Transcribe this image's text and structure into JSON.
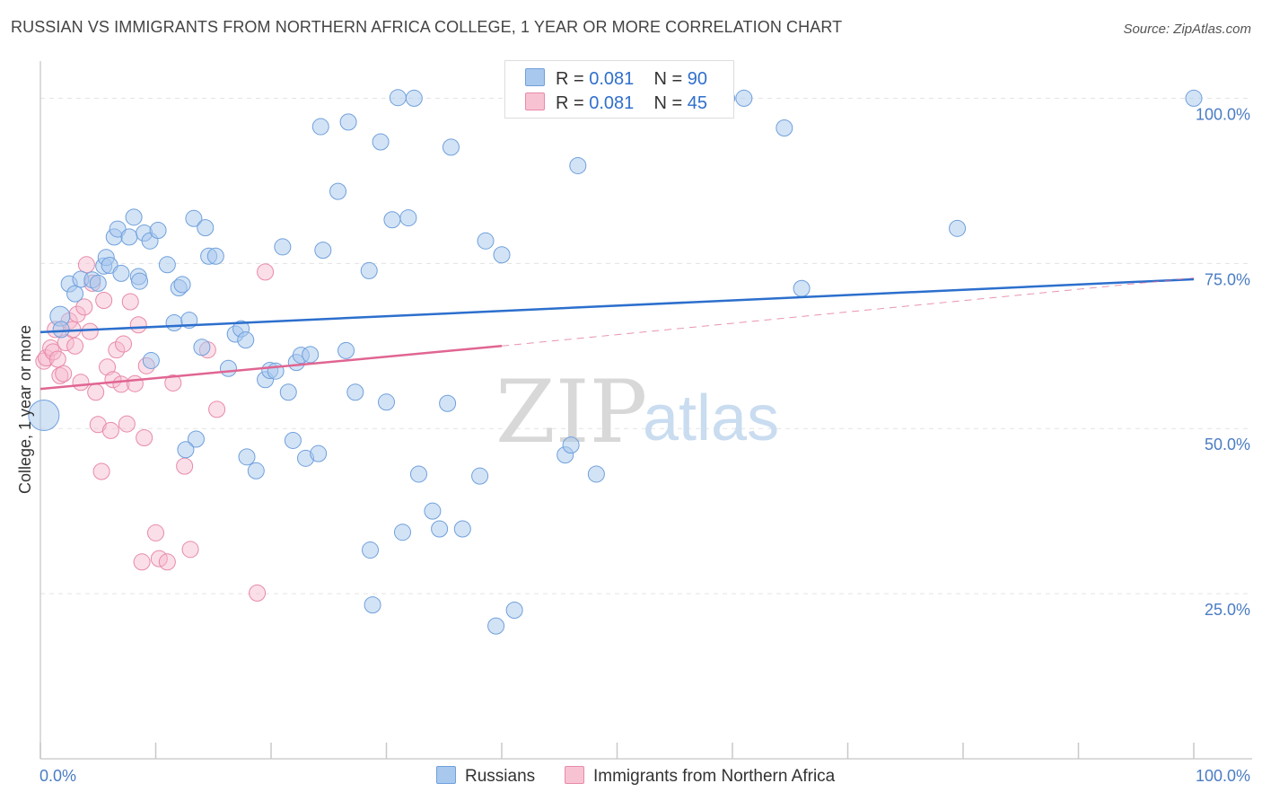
{
  "title": "RUSSIAN VS IMMIGRANTS FROM NORTHERN AFRICA COLLEGE, 1 YEAR OR MORE CORRELATION CHART",
  "source": "Source: ZipAtlas.com",
  "watermark": {
    "zip": "ZIP",
    "atlas": "atlas"
  },
  "legend": {
    "r_label": "R =",
    "n_label": "N =",
    "russians": {
      "r": "0.081",
      "n": "90"
    },
    "immigrants": {
      "r": "0.081",
      "n": "45"
    }
  },
  "bottom_legend": {
    "russians": "Russians",
    "immigrants": "Immigrants from Northern Africa"
  },
  "colors": {
    "russians_fill": "#a8c8ee",
    "russians_stroke": "#6fa0dc",
    "russians_line": "#2c6fcd",
    "immigrants_fill": "#f7b8cb",
    "immigrants_stroke": "#e88aa8",
    "immigrants_line": "#e06592",
    "tick_text": "#4a7cc4",
    "grid": "#e3e3e3"
  },
  "chart_data": {
    "type": "scatter",
    "title": "RUSSIAN VS IMMIGRANTS FROM NORTHERN AFRICA COLLEGE, 1 YEAR OR MORE CORRELATION CHART",
    "xlabel": "",
    "ylabel": "College, 1 year or more",
    "xlim": [
      0,
      100
    ],
    "ylim": [
      0,
      104
    ],
    "x_tick_labels": [
      "0.0%",
      "100.0%"
    ],
    "y_tick_labels": [
      "25.0%",
      "50.0%",
      "75.0%",
      "100.0%"
    ],
    "y_ticks": [
      25,
      50,
      75,
      100
    ],
    "grid": true,
    "series": [
      {
        "name": "Russians",
        "points": [
          [
            0.3,
            52.0
          ],
          [
            1.7,
            67.0
          ],
          [
            1.8,
            65.0
          ],
          [
            2.5,
            71.9
          ],
          [
            3.0,
            70.4
          ],
          [
            3.5,
            72.6
          ],
          [
            4.5,
            72.5
          ],
          [
            5.0,
            72.0
          ],
          [
            5.5,
            74.6
          ],
          [
            5.7,
            75.9
          ],
          [
            6.0,
            74.7
          ],
          [
            6.4,
            79.0
          ],
          [
            6.7,
            80.2
          ],
          [
            7.0,
            73.5
          ],
          [
            7.7,
            79.0
          ],
          [
            8.1,
            82.0
          ],
          [
            8.5,
            73.0
          ],
          [
            9.0,
            79.6
          ],
          [
            9.5,
            78.4
          ],
          [
            10.2,
            80.0
          ],
          [
            11.0,
            74.8
          ],
          [
            11.6,
            66.0
          ],
          [
            12.0,
            71.3
          ],
          [
            12.3,
            71.8
          ],
          [
            12.9,
            66.4
          ],
          [
            13.3,
            81.8
          ],
          [
            14.0,
            62.3
          ],
          [
            14.3,
            80.4
          ],
          [
            14.6,
            76.1
          ],
          [
            15.2,
            76.1
          ],
          [
            16.3,
            59.1
          ],
          [
            16.9,
            64.3
          ],
          [
            17.4,
            65.1
          ],
          [
            17.8,
            63.4
          ],
          [
            18.7,
            43.6
          ],
          [
            19.5,
            57.4
          ],
          [
            19.9,
            58.8
          ],
          [
            20.4,
            58.7
          ],
          [
            21.0,
            77.5
          ],
          [
            21.5,
            55.5
          ],
          [
            21.9,
            48.2
          ],
          [
            22.2,
            60.0
          ],
          [
            22.6,
            61.1
          ],
          [
            23.0,
            45.5
          ],
          [
            23.4,
            61.2
          ],
          [
            24.1,
            46.2
          ],
          [
            24.3,
            95.7
          ],
          [
            24.5,
            77.0
          ],
          [
            25.8,
            85.9
          ],
          [
            26.5,
            61.8
          ],
          [
            26.7,
            96.4
          ],
          [
            27.3,
            55.5
          ],
          [
            28.5,
            73.9
          ],
          [
            28.6,
            31.6
          ],
          [
            28.8,
            23.3
          ],
          [
            29.5,
            93.4
          ],
          [
            30.0,
            54.0
          ],
          [
            30.5,
            81.6
          ],
          [
            31.0,
            100.1
          ],
          [
            31.4,
            34.3
          ],
          [
            31.9,
            81.9
          ],
          [
            32.4,
            100.0
          ],
          [
            32.8,
            43.1
          ],
          [
            34.0,
            37.5
          ],
          [
            34.6,
            34.8
          ],
          [
            35.3,
            53.8
          ],
          [
            35.6,
            92.6
          ],
          [
            36.6,
            34.8
          ],
          [
            38.1,
            42.8
          ],
          [
            38.6,
            78.4
          ],
          [
            39.5,
            20.1
          ],
          [
            40.0,
            76.3
          ],
          [
            41.1,
            22.5
          ],
          [
            44.0,
            100.0
          ],
          [
            45.5,
            46.0
          ],
          [
            46.0,
            47.5
          ],
          [
            46.6,
            89.8
          ],
          [
            48.2,
            43.1
          ],
          [
            59.0,
            100.0
          ],
          [
            59.5,
            100.0
          ],
          [
            61.0,
            100.0
          ],
          [
            64.5,
            95.5
          ],
          [
            66.0,
            71.2
          ],
          [
            79.5,
            80.3
          ],
          [
            100.0,
            100.0
          ],
          [
            9.6,
            60.3
          ],
          [
            8.6,
            72.3
          ],
          [
            13.5,
            48.4
          ],
          [
            12.6,
            46.8
          ],
          [
            17.9,
            45.7
          ]
        ]
      },
      {
        "name": "Immigrants from Northern Africa",
        "points": [
          [
            0.3,
            60.2
          ],
          [
            0.5,
            60.7
          ],
          [
            0.9,
            62.2
          ],
          [
            1.1,
            61.6
          ],
          [
            1.3,
            65.0
          ],
          [
            1.5,
            60.5
          ],
          [
            1.7,
            58.0
          ],
          [
            2.0,
            58.3
          ],
          [
            2.2,
            63.0
          ],
          [
            2.5,
            66.3
          ],
          [
            2.8,
            65.0
          ],
          [
            3.0,
            62.5
          ],
          [
            3.2,
            67.3
          ],
          [
            3.5,
            57.0
          ],
          [
            3.8,
            68.4
          ],
          [
            4.0,
            74.8
          ],
          [
            4.3,
            64.7
          ],
          [
            4.5,
            72.0
          ],
          [
            4.8,
            55.5
          ],
          [
            5.0,
            50.6
          ],
          [
            5.3,
            43.5
          ],
          [
            5.5,
            69.4
          ],
          [
            5.8,
            59.3
          ],
          [
            6.1,
            49.7
          ],
          [
            6.3,
            57.4
          ],
          [
            6.6,
            61.9
          ],
          [
            7.0,
            56.7
          ],
          [
            7.2,
            62.8
          ],
          [
            7.5,
            50.7
          ],
          [
            7.8,
            69.2
          ],
          [
            8.2,
            56.8
          ],
          [
            8.5,
            65.7
          ],
          [
            8.8,
            29.8
          ],
          [
            9.0,
            48.6
          ],
          [
            9.2,
            59.5
          ],
          [
            10.0,
            34.2
          ],
          [
            10.3,
            30.3
          ],
          [
            11.0,
            29.8
          ],
          [
            11.5,
            56.9
          ],
          [
            12.5,
            44.3
          ],
          [
            13.0,
            31.7
          ],
          [
            14.5,
            61.9
          ],
          [
            15.3,
            52.9
          ],
          [
            18.8,
            25.1
          ],
          [
            19.5,
            73.7
          ]
        ]
      }
    ],
    "trend_lines": [
      {
        "name": "Russians",
        "x": [
          0,
          100
        ],
        "y": [
          64.6,
          72.6
        ],
        "style": "solid"
      },
      {
        "name": "Immigrants from Northern Africa",
        "x": [
          0,
          40
        ],
        "y": [
          56.0,
          62.5
        ],
        "style": "solid"
      },
      {
        "name": "Immigrants from Northern Africa",
        "x": [
          40,
          100
        ],
        "y": [
          62.5,
          72.8
        ],
        "style": "dashed"
      }
    ]
  }
}
